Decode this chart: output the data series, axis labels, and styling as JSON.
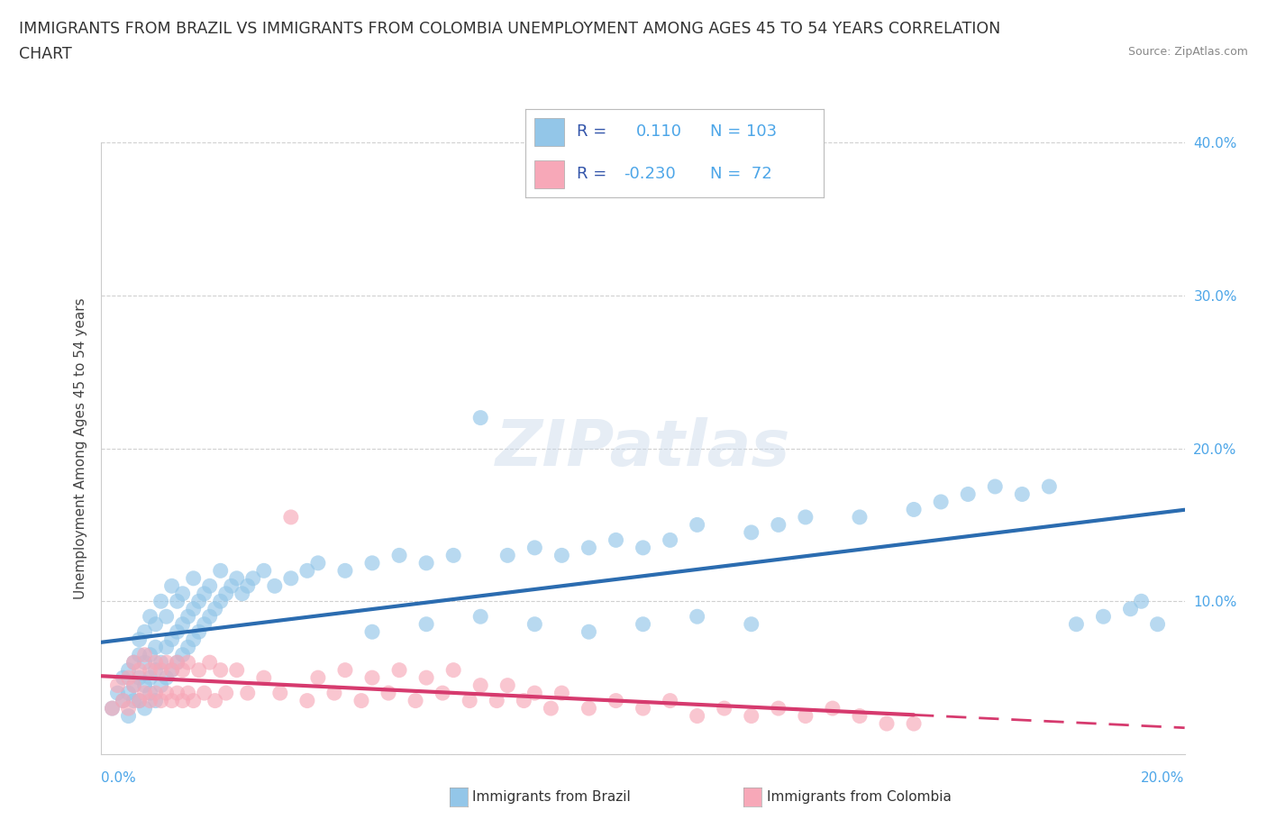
{
  "title_line1": "IMMIGRANTS FROM BRAZIL VS IMMIGRANTS FROM COLOMBIA UNEMPLOYMENT AMONG AGES 45 TO 54 YEARS CORRELATION",
  "title_line2": "CHART",
  "source": "Source: ZipAtlas.com",
  "ylabel": "Unemployment Among Ages 45 to 54 years",
  "xlim": [
    0.0,
    0.2
  ],
  "ylim": [
    0.0,
    0.4
  ],
  "brazil_color": "#93c6e8",
  "colombia_color": "#f7a8b8",
  "brazil_R": 0.11,
  "brazil_N": 103,
  "colombia_R": -0.23,
  "colombia_N": 72,
  "brazil_line_color": "#2b6cb0",
  "colombia_line_color": "#d63a6e",
  "watermark": "ZIPatlas",
  "background_color": "#ffffff",
  "brazil_scatter_x": [
    0.002,
    0.003,
    0.004,
    0.004,
    0.005,
    0.005,
    0.005,
    0.006,
    0.006,
    0.006,
    0.007,
    0.007,
    0.007,
    0.007,
    0.008,
    0.008,
    0.008,
    0.008,
    0.009,
    0.009,
    0.009,
    0.009,
    0.01,
    0.01,
    0.01,
    0.01,
    0.011,
    0.011,
    0.011,
    0.012,
    0.012,
    0.012,
    0.013,
    0.013,
    0.013,
    0.014,
    0.014,
    0.014,
    0.015,
    0.015,
    0.015,
    0.016,
    0.016,
    0.017,
    0.017,
    0.017,
    0.018,
    0.018,
    0.019,
    0.019,
    0.02,
    0.02,
    0.021,
    0.022,
    0.022,
    0.023,
    0.024,
    0.025,
    0.026,
    0.027,
    0.028,
    0.03,
    0.032,
    0.035,
    0.038,
    0.04,
    0.045,
    0.05,
    0.055,
    0.06,
    0.065,
    0.07,
    0.075,
    0.08,
    0.085,
    0.09,
    0.095,
    0.1,
    0.105,
    0.11,
    0.12,
    0.125,
    0.13,
    0.14,
    0.15,
    0.155,
    0.16,
    0.165,
    0.17,
    0.175,
    0.18,
    0.185,
    0.19,
    0.192,
    0.195,
    0.05,
    0.06,
    0.07,
    0.08,
    0.09,
    0.1,
    0.11,
    0.12
  ],
  "brazil_scatter_y": [
    0.03,
    0.04,
    0.035,
    0.05,
    0.04,
    0.055,
    0.025,
    0.045,
    0.06,
    0.035,
    0.05,
    0.065,
    0.035,
    0.075,
    0.045,
    0.06,
    0.03,
    0.08,
    0.04,
    0.065,
    0.05,
    0.09,
    0.035,
    0.07,
    0.055,
    0.085,
    0.045,
    0.06,
    0.1,
    0.05,
    0.07,
    0.09,
    0.055,
    0.075,
    0.11,
    0.06,
    0.08,
    0.1,
    0.065,
    0.085,
    0.105,
    0.07,
    0.09,
    0.075,
    0.095,
    0.115,
    0.08,
    0.1,
    0.085,
    0.105,
    0.09,
    0.11,
    0.095,
    0.1,
    0.12,
    0.105,
    0.11,
    0.115,
    0.105,
    0.11,
    0.115,
    0.12,
    0.11,
    0.115,
    0.12,
    0.125,
    0.12,
    0.125,
    0.13,
    0.125,
    0.13,
    0.22,
    0.13,
    0.135,
    0.13,
    0.135,
    0.14,
    0.135,
    0.14,
    0.15,
    0.145,
    0.15,
    0.155,
    0.155,
    0.16,
    0.165,
    0.17,
    0.175,
    0.17,
    0.175,
    0.085,
    0.09,
    0.095,
    0.1,
    0.085,
    0.08,
    0.085,
    0.09,
    0.085,
    0.08,
    0.085,
    0.09,
    0.085
  ],
  "colombia_scatter_x": [
    0.002,
    0.003,
    0.004,
    0.005,
    0.005,
    0.006,
    0.006,
    0.007,
    0.007,
    0.008,
    0.008,
    0.009,
    0.009,
    0.01,
    0.01,
    0.011,
    0.011,
    0.012,
    0.012,
    0.013,
    0.013,
    0.014,
    0.014,
    0.015,
    0.015,
    0.016,
    0.016,
    0.017,
    0.018,
    0.019,
    0.02,
    0.021,
    0.022,
    0.023,
    0.025,
    0.027,
    0.03,
    0.033,
    0.035,
    0.038,
    0.04,
    0.043,
    0.045,
    0.048,
    0.05,
    0.053,
    0.055,
    0.058,
    0.06,
    0.063,
    0.065,
    0.068,
    0.07,
    0.073,
    0.075,
    0.078,
    0.08,
    0.083,
    0.085,
    0.09,
    0.095,
    0.1,
    0.105,
    0.11,
    0.115,
    0.12,
    0.125,
    0.13,
    0.135,
    0.14,
    0.145,
    0.15
  ],
  "colombia_scatter_y": [
    0.03,
    0.045,
    0.035,
    0.05,
    0.03,
    0.045,
    0.06,
    0.035,
    0.055,
    0.04,
    0.065,
    0.035,
    0.055,
    0.04,
    0.06,
    0.035,
    0.055,
    0.04,
    0.06,
    0.035,
    0.055,
    0.04,
    0.06,
    0.035,
    0.055,
    0.04,
    0.06,
    0.035,
    0.055,
    0.04,
    0.06,
    0.035,
    0.055,
    0.04,
    0.055,
    0.04,
    0.05,
    0.04,
    0.155,
    0.035,
    0.05,
    0.04,
    0.055,
    0.035,
    0.05,
    0.04,
    0.055,
    0.035,
    0.05,
    0.04,
    0.055,
    0.035,
    0.045,
    0.035,
    0.045,
    0.035,
    0.04,
    0.03,
    0.04,
    0.03,
    0.035,
    0.03,
    0.035,
    0.025,
    0.03,
    0.025,
    0.03,
    0.025,
    0.03,
    0.025,
    0.02,
    0.02
  ]
}
